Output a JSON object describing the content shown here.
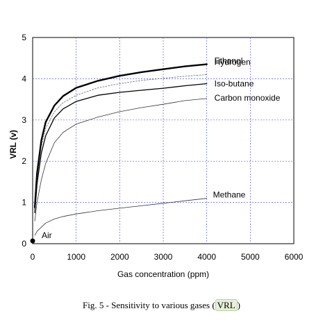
{
  "chart_data": {
    "type": "line",
    "xlabel": "Gas concentration (ppm)",
    "ylabel": "VRL (v)",
    "xlim": [
      0,
      6000
    ],
    "ylim": [
      0,
      5
    ],
    "xticks": [
      0,
      1000,
      2000,
      3000,
      4000,
      5000,
      6000
    ],
    "yticks": [
      0,
      1,
      2,
      3,
      4,
      5
    ],
    "grid": true,
    "series": [
      {
        "name": "Ethanol",
        "style": "bold",
        "color": "#000000",
        "x": [
          50,
          100,
          200,
          300,
          500,
          700,
          1000,
          1500,
          2000,
          2500,
          3000,
          3500,
          4000
        ],
        "y": [
          0.88,
          1.7,
          2.5,
          2.95,
          3.35,
          3.58,
          3.78,
          3.95,
          4.07,
          4.16,
          4.23,
          4.3,
          4.35
        ]
      },
      {
        "name": "Hydrogen",
        "style": "dotted",
        "color": "#666666",
        "x": [
          50,
          100,
          200,
          300,
          500,
          700,
          1000,
          1500,
          2000,
          2500,
          3000,
          3500,
          4000
        ],
        "y": [
          0.85,
          1.55,
          2.35,
          2.8,
          3.2,
          3.42,
          3.6,
          3.78,
          3.88,
          3.96,
          4.01,
          4.06,
          4.1
        ]
      },
      {
        "name": "Iso-butane",
        "style": "solid",
        "color": "#000000",
        "x": [
          50,
          100,
          200,
          300,
          500,
          700,
          1000,
          1500,
          2000,
          2500,
          3000,
          3500,
          4000
        ],
        "y": [
          0.75,
          1.45,
          2.2,
          2.62,
          3.05,
          3.27,
          3.45,
          3.6,
          3.67,
          3.72,
          3.77,
          3.83,
          3.88
        ]
      },
      {
        "name": "Carbon monoxide",
        "style": "thin",
        "color": "#333333",
        "x": [
          50,
          100,
          200,
          300,
          500,
          700,
          1000,
          1500,
          2000,
          2500,
          3000,
          3500,
          4000
        ],
        "y": [
          0.55,
          1.0,
          1.55,
          1.95,
          2.45,
          2.7,
          2.9,
          3.07,
          3.2,
          3.3,
          3.38,
          3.47,
          3.52
        ]
      },
      {
        "name": "Methane",
        "style": "thin",
        "color": "#333333",
        "x": [
          50,
          100,
          200,
          300,
          500,
          700,
          1000,
          1500,
          2000,
          2500,
          3000,
          3500,
          4000
        ],
        "y": [
          0.2,
          0.3,
          0.4,
          0.5,
          0.6,
          0.66,
          0.72,
          0.8,
          0.86,
          0.92,
          0.98,
          1.04,
          1.1
        ]
      }
    ],
    "points": [
      {
        "name": "Air",
        "x": 0,
        "y": 0.05
      }
    ]
  },
  "caption": {
    "prefix": "Fig. 5 - Sensitivity to various gases (",
    "highlight": "VRL",
    "suffix": ")"
  }
}
